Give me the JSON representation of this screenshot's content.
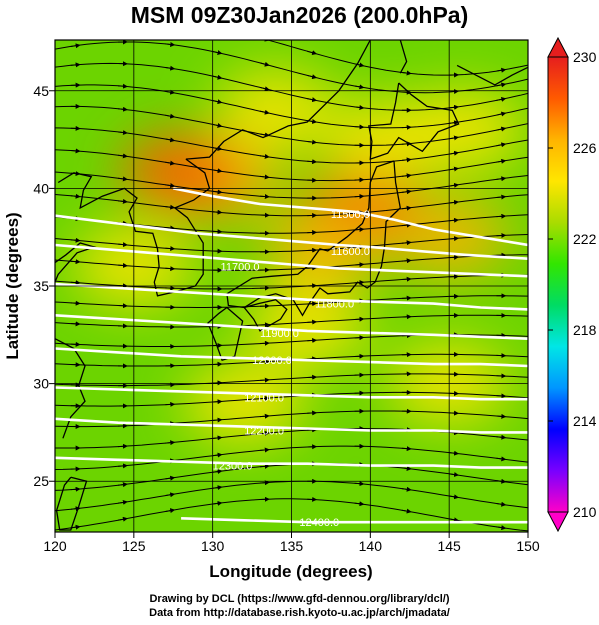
{
  "title": "MSM 09Z30Jan2026 (200.0hPa)",
  "map": {
    "xlabel": "Longitude (degrees)",
    "ylabel": "Latitude  (degrees)",
    "x_ticks": [
      "120",
      "125",
      "130",
      "135",
      "140",
      "145",
      "150"
    ],
    "y_ticks": [
      "25",
      "30",
      "35",
      "40",
      "45"
    ],
    "x_range": [
      120,
      150
    ],
    "y_range": [
      22.4,
      47.6
    ],
    "field": "temperature (colour shading)",
    "contour_labels": [
      "11500.0",
      "11600.0",
      "11700.0",
      "11800.0",
      "11900.0",
      "12000.0",
      "12100.0",
      "12200.0",
      "12300.0",
      "12400.0"
    ],
    "contours": [
      {
        "value": "11500.0",
        "points": [
          [
            127.5,
            40.0
          ],
          [
            130,
            39.6
          ],
          [
            133,
            39.2
          ],
          [
            136,
            39.0
          ],
          [
            139,
            38.8
          ],
          [
            141.5,
            38.4
          ],
          [
            144,
            37.9
          ],
          [
            147,
            37.5
          ],
          [
            150,
            37.1
          ]
        ],
        "label_at": [
          137.5,
          38.7
        ]
      },
      {
        "value": "11600.0",
        "points": [
          [
            120,
            38.6
          ],
          [
            123,
            38.3
          ],
          [
            126,
            38.0
          ],
          [
            129,
            37.7
          ],
          [
            132,
            37.5
          ],
          [
            135,
            37.3
          ],
          [
            138,
            37.1
          ],
          [
            140,
            37.0
          ],
          [
            143,
            36.8
          ],
          [
            146,
            36.6
          ],
          [
            150,
            36.4
          ]
        ],
        "label_at": [
          137.5,
          36.8
        ]
      },
      {
        "value": "11700.0",
        "points": [
          [
            120,
            37.1
          ],
          [
            123,
            36.9
          ],
          [
            126,
            36.7
          ],
          [
            129,
            36.5
          ],
          [
            132,
            36.3
          ],
          [
            135,
            36.1
          ],
          [
            138,
            35.9
          ],
          [
            141,
            35.8
          ],
          [
            144,
            35.7
          ],
          [
            147,
            35.6
          ],
          [
            150,
            35.5
          ]
        ],
        "label_at": [
          130.5,
          36.0
        ]
      },
      {
        "value": "11800.0",
        "points": [
          [
            120,
            35.1
          ],
          [
            124,
            34.9
          ],
          [
            128,
            34.7
          ],
          [
            132,
            34.5
          ],
          [
            136,
            34.3
          ],
          [
            140,
            34.2
          ],
          [
            144,
            34.1
          ],
          [
            147,
            33.9
          ],
          [
            150,
            33.8
          ]
        ],
        "label_at": [
          136.5,
          34.1
        ]
      },
      {
        "value": "11900.0",
        "points": [
          [
            120,
            33.5
          ],
          [
            124,
            33.3
          ],
          [
            128,
            33.1
          ],
          [
            132,
            32.9
          ],
          [
            136,
            32.7
          ],
          [
            140,
            32.6
          ],
          [
            144,
            32.5
          ],
          [
            147,
            32.4
          ],
          [
            150,
            32.3
          ]
        ],
        "label_at": [
          133.0,
          32.6
        ]
      },
      {
        "value": "12000.0",
        "points": [
          [
            120,
            31.8
          ],
          [
            124,
            31.6
          ],
          [
            128,
            31.4
          ],
          [
            132,
            31.3
          ],
          [
            136,
            31.2
          ],
          [
            140,
            31.1
          ],
          [
            144,
            31.0
          ],
          [
            147,
            31.0
          ],
          [
            150,
            30.9
          ]
        ],
        "label_at": [
          132.5,
          31.2
        ]
      },
      {
        "value": "12100.0",
        "points": [
          [
            120,
            29.8
          ],
          [
            124,
            29.7
          ],
          [
            128,
            29.6
          ],
          [
            132,
            29.5
          ],
          [
            136,
            29.4
          ],
          [
            140,
            29.3
          ],
          [
            144,
            29.3
          ],
          [
            147,
            29.2
          ],
          [
            150,
            29.2
          ]
        ],
        "label_at": [
          132.0,
          29.3
        ]
      },
      {
        "value": "12200.0",
        "points": [
          [
            120,
            28.2
          ],
          [
            124,
            28.0
          ],
          [
            128,
            27.9
          ],
          [
            132,
            27.8
          ],
          [
            136,
            27.7
          ],
          [
            140,
            27.6
          ],
          [
            144,
            27.6
          ],
          [
            147,
            27.5
          ],
          [
            150,
            27.5
          ]
        ],
        "label_at": [
          132.0,
          27.6
        ]
      },
      {
        "value": "12300.0",
        "points": [
          [
            120,
            26.2
          ],
          [
            124,
            26.1
          ],
          [
            128,
            26.0
          ],
          [
            132,
            25.9
          ],
          [
            136,
            25.9
          ],
          [
            140,
            25.8
          ],
          [
            144,
            25.8
          ],
          [
            147,
            25.7
          ],
          [
            150,
            25.7
          ]
        ],
        "label_at": [
          130.0,
          25.8
        ]
      },
      {
        "value": "12400.0",
        "points": [
          [
            128,
            23.1
          ],
          [
            132,
            23.0
          ],
          [
            136,
            22.9
          ],
          [
            140,
            22.9
          ],
          [
            144,
            22.9
          ],
          [
            147,
            22.9
          ],
          [
            150,
            22.9
          ]
        ],
        "label_at": [
          135.5,
          22.9
        ]
      }
    ],
    "temperature_blobs": [
      {
        "lon": 139.5,
        "lat": 39.0,
        "value": 228
      },
      {
        "lon": 137.0,
        "lat": 37.0,
        "value": 227
      },
      {
        "lon": 145.0,
        "lat": 37.5,
        "value": 227
      },
      {
        "lon": 130.5,
        "lat": 40.5,
        "value": 226
      },
      {
        "lon": 141.0,
        "lat": 42.5,
        "value": 225
      },
      {
        "lon": 136.0,
        "lat": 33.0,
        "value": 225
      },
      {
        "lon": 134.0,
        "lat": 44.0,
        "value": 225
      },
      {
        "lon": 146.0,
        "lat": 43.0,
        "value": 225
      },
      {
        "lon": 128.0,
        "lat": 40.8,
        "value": 228
      },
      {
        "lon": 125.0,
        "lat": 36.0,
        "value": 224
      },
      {
        "lon": 132.0,
        "lat": 29.0,
        "value": 224
      },
      {
        "lon": 145.0,
        "lat": 30.0,
        "value": 224
      }
    ],
    "coastlines": [
      [
        [
          141.8,
          45.4
        ],
        [
          142.6,
          44.8
        ],
        [
          143.6,
          44.2
        ],
        [
          145.2,
          44.0
        ],
        [
          145.6,
          43.3
        ],
        [
          144.3,
          42.9
        ],
        [
          143.3,
          41.9
        ],
        [
          141.8,
          42.6
        ],
        [
          141.1,
          41.8
        ],
        [
          140.0,
          41.5
        ],
        [
          140.1,
          42.4
        ],
        [
          139.9,
          43.2
        ],
        [
          141.3,
          43.3
        ],
        [
          141.6,
          44.4
        ],
        [
          141.8,
          45.4
        ]
      ],
      [
        [
          141.5,
          41.4
        ],
        [
          141.6,
          40.3
        ],
        [
          141.9,
          39.0
        ],
        [
          141.0,
          38.3
        ],
        [
          140.9,
          37.0
        ],
        [
          140.7,
          36.0
        ],
        [
          140.3,
          35.2
        ],
        [
          139.8,
          34.9
        ],
        [
          139.2,
          35.2
        ],
        [
          138.7,
          34.7
        ],
        [
          137.3,
          34.6
        ],
        [
          136.8,
          34.9
        ],
        [
          136.2,
          34.2
        ],
        [
          135.7,
          33.5
        ],
        [
          135.1,
          34.3
        ],
        [
          134.0,
          34.6
        ],
        [
          133.0,
          34.4
        ],
        [
          132.0,
          33.9
        ],
        [
          131.0,
          34.0
        ],
        [
          130.9,
          34.6
        ],
        [
          132.5,
          35.4
        ],
        [
          133.8,
          35.5
        ],
        [
          135.4,
          35.6
        ],
        [
          136.0,
          36.0
        ],
        [
          136.8,
          36.9
        ],
        [
          137.3,
          36.8
        ],
        [
          138.5,
          37.5
        ],
        [
          139.5,
          38.2
        ],
        [
          139.9,
          39.0
        ],
        [
          140.0,
          40.3
        ],
        [
          140.4,
          41.1
        ],
        [
          141.5,
          41.4
        ]
      ],
      [
        [
          130.9,
          33.9
        ],
        [
          131.9,
          33.2
        ],
        [
          131.4,
          31.4
        ],
        [
          130.6,
          31.2
        ],
        [
          130.2,
          32.1
        ],
        [
          129.7,
          33.1
        ],
        [
          130.4,
          33.6
        ],
        [
          130.9,
          33.9
        ]
      ],
      [
        [
          132.0,
          33.9
        ],
        [
          132.6,
          33.3
        ],
        [
          133.0,
          32.7
        ],
        [
          134.3,
          33.3
        ],
        [
          134.7,
          33.8
        ],
        [
          134.0,
          34.3
        ],
        [
          132.9,
          34.1
        ],
        [
          132.0,
          33.9
        ]
      ],
      [
        [
          128.3,
          41.5
        ],
        [
          129.5,
          40.8
        ],
        [
          129.8,
          40.0
        ],
        [
          128.8,
          39.4
        ],
        [
          127.6,
          39.0
        ],
        [
          128.4,
          38.5
        ],
        [
          129.4,
          37.2
        ],
        [
          129.4,
          35.6
        ],
        [
          128.9,
          35.0
        ],
        [
          127.6,
          34.7
        ],
        [
          126.5,
          34.5
        ],
        [
          126.3,
          35.2
        ],
        [
          126.6,
          36.0
        ],
        [
          126.5,
          36.9
        ],
        [
          126.2,
          37.7
        ],
        [
          125.1,
          37.8
        ],
        [
          124.7,
          38.8
        ],
        [
          125.2,
          39.5
        ],
        [
          124.4,
          40.0
        ],
        [
          123.0,
          39.6
        ],
        [
          121.6,
          39.0
        ],
        [
          121.8,
          39.9
        ],
        [
          122.3,
          40.6
        ],
        [
          121.2,
          40.8
        ],
        [
          120.2,
          40.3
        ]
      ],
      [
        [
          120.0,
          36.2
        ],
        [
          120.7,
          36.6
        ],
        [
          121.6,
          37.2
        ],
        [
          122.5,
          37.0
        ],
        [
          121.4,
          36.7
        ],
        [
          120.2,
          35.6
        ],
        [
          119.9,
          35.0
        ]
      ],
      [
        [
          120.0,
          32.3
        ],
        [
          121.2,
          31.8
        ],
        [
          121.9,
          30.9
        ],
        [
          121.5,
          29.9
        ],
        [
          121.9,
          29.1
        ],
        [
          121.0,
          28.3
        ],
        [
          120.5,
          27.2
        ]
      ],
      [
        [
          121.0,
          25.2
        ],
        [
          122.0,
          25.0
        ],
        [
          121.5,
          23.7
        ],
        [
          121.0,
          22.5
        ],
        [
          120.3,
          22.5
        ],
        [
          120.1,
          23.5
        ],
        [
          120.6,
          24.8
        ],
        [
          121.0,
          25.2
        ]
      ],
      [
        [
          141.9,
          47.6
        ],
        [
          142.3,
          46.5
        ],
        [
          141.9,
          45.9
        ]
      ],
      [
        [
          145.5,
          46.3
        ],
        [
          147.9,
          45.3
        ],
        [
          149.0,
          45.8
        ],
        [
          150.0,
          46.2
        ]
      ],
      [
        [
          140.0,
          47.6
        ],
        [
          139.2,
          46.4
        ],
        [
          138.0,
          45.0
        ],
        [
          136.0,
          43.4
        ],
        [
          134.8,
          43.2
        ],
        [
          133.2,
          42.6
        ],
        [
          131.9,
          43.0
        ],
        [
          130.7,
          42.4
        ],
        [
          129.8,
          41.6
        ],
        [
          128.3,
          41.5
        ]
      ]
    ],
    "flow_lines": [
      {
        "lat": 47.2,
        "amp": 1.4,
        "phase": 0.6
      },
      {
        "lat": 46.2,
        "amp": 1.3,
        "phase": 0.8
      },
      {
        "lat": 45.2,
        "amp": 1.2,
        "phase": 1.0
      },
      {
        "lat": 44.2,
        "amp": 1.1,
        "phase": 1.2
      },
      {
        "lat": 43.2,
        "amp": 1.0,
        "phase": 1.4
      },
      {
        "lat": 42.2,
        "amp": 0.9,
        "phase": 1.6
      },
      {
        "lat": 41.2,
        "amp": 0.8,
        "phase": 1.8
      },
      {
        "lat": 40.2,
        "amp": 0.7,
        "phase": 2.0
      },
      {
        "lat": 39.2,
        "amp": 0.6,
        "phase": 2.2
      },
      {
        "lat": 38.2,
        "amp": 0.5,
        "phase": 2.4
      },
      {
        "lat": 37.2,
        "amp": 0.45,
        "phase": 2.6
      },
      {
        "lat": 36.2,
        "amp": 0.4,
        "phase": 2.8
      },
      {
        "lat": 35.2,
        "amp": 0.35,
        "phase": 3.0
      },
      {
        "lat": 34.2,
        "amp": 0.3,
        "phase": 3.2
      },
      {
        "lat": 33.2,
        "amp": 0.3,
        "phase": 3.4
      },
      {
        "lat": 32.2,
        "amp": 0.3,
        "phase": 3.6
      },
      {
        "lat": 31.2,
        "amp": 0.3,
        "phase": 3.8
      },
      {
        "lat": 30.2,
        "amp": 0.3,
        "phase": 4.0
      },
      {
        "lat": 29.2,
        "amp": 0.35,
        "phase": 4.2
      },
      {
        "lat": 28.2,
        "amp": 0.4,
        "phase": 4.4
      },
      {
        "lat": 27.2,
        "amp": 0.5,
        "phase": 4.6
      },
      {
        "lat": 26.2,
        "amp": 0.6,
        "phase": 4.8
      },
      {
        "lat": 25.2,
        "amp": 0.7,
        "phase": 5.0
      },
      {
        "lat": 24.2,
        "amp": 0.8,
        "phase": 5.2
      },
      {
        "lat": 23.2,
        "amp": 0.9,
        "phase": 5.4
      }
    ]
  },
  "colorbar": {
    "ticks": [
      "230",
      "226",
      "222",
      "218",
      "214",
      "210"
    ],
    "min": 210,
    "max": 230,
    "stops": [
      "#ff00c8",
      "#7800ff",
      "#0000ff",
      "#0096ff",
      "#00e6e6",
      "#00dc64",
      "#32e600",
      "#aadc00",
      "#ffe600",
      "#ffb400",
      "#ff5a00",
      "#e61e1e"
    ]
  },
  "colors": {
    "contour": "#ffffff",
    "coast": "#000000",
    "vector": "#000000",
    "grid": "#000000"
  },
  "credits": {
    "line1": "Drawing by DCL (https://www.gfd-dennou.org/library/dcl/)",
    "line2": "Data from http://database.rish.kyoto-u.ac.jp/arch/jmadata/"
  }
}
